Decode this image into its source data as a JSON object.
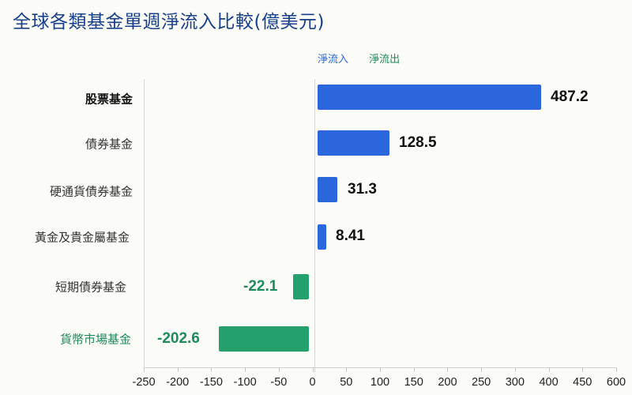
{
  "title": "全球各類基金單週淨流入比較(億美元)",
  "legend": {
    "inflow": "淨流入",
    "outflow": "淨流出"
  },
  "colors": {
    "inflow": "#2b66dc",
    "outflow": "#24a06c",
    "title": "#173f8a"
  },
  "categories": [
    {
      "label": "股票基金",
      "value": "487.2"
    },
    {
      "label": "債券基金",
      "value": "128.5"
    },
    {
      "label": "硬通貨債券基金",
      "value": "31.3"
    },
    {
      "label": "黃金及貴金屬基金",
      "value": "8.41"
    },
    {
      "label": "短期債券基金",
      "value": "-22.1"
    },
    {
      "label": "貨幣市場基金",
      "value": "-202.6"
    }
  ],
  "x_ticks": [
    "-250",
    "-200",
    "-150",
    "-100",
    "-50",
    "0",
    "50",
    "100",
    "150",
    "200",
    "250",
    "300",
    "400",
    "450",
    "600"
  ],
  "chart_data": {
    "type": "bar",
    "orientation": "horizontal",
    "title": "全球各類基金單週淨流入比較(億美元)",
    "categories": [
      "股票基金",
      "債券基金",
      "硬通貨債券基金",
      "黃金及貴金屬基金",
      "短期債券基金",
      "貨幣市場基金"
    ],
    "values": [
      487.2,
      128.5,
      31.3,
      8.41,
      -22.1,
      -202.6
    ],
    "series": [
      {
        "name": "淨流入",
        "values": [
          487.2,
          128.5,
          31.3,
          8.41,
          null,
          null
        ]
      },
      {
        "name": "淨流出",
        "values": [
          null,
          null,
          null,
          null,
          -22.1,
          -202.6
        ]
      }
    ],
    "xlabel": "",
    "ylabel": "",
    "x_tick_labels": [
      "-250",
      "-200",
      "-150",
      "-100",
      "-50",
      "0",
      "50",
      "100",
      "150",
      "200",
      "250",
      "300",
      "400",
      "450",
      "600"
    ],
    "xlim": [
      -250,
      600
    ],
    "legend_position": "top",
    "grid": false
  }
}
